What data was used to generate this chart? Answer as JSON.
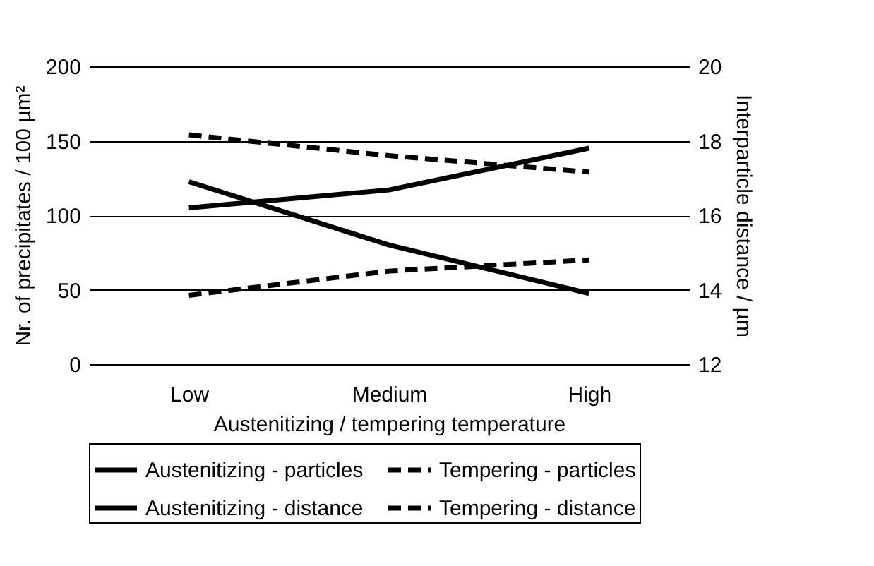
{
  "chart_data": {
    "type": "line",
    "xlabel": "Austenitizing / tempering  temperature",
    "ylabel": "Nr. of precipitates / 100 µm²",
    "y2label": "Interparticle distance / µm",
    "categories": [
      "Low",
      "Medium",
      "High"
    ],
    "series": [
      {
        "name": "Austenitizing - particles",
        "color": "#000000",
        "line_style": "solid",
        "values": [
          105,
          117,
          145
        ]
      },
      {
        "name": "Tempering - particles",
        "color": "#000000",
        "line_style": "dashed",
        "values": [
          154,
          140,
          129
        ]
      },
      {
        "name": "Austenitizing - distance",
        "color": "#000000",
        "line_style": "solid",
        "axis": "y2",
        "values": [
          16.9,
          15.2,
          13.9
        ]
      },
      {
        "name": "Tempering - distance",
        "color": "#000000",
        "line_style": "dashed",
        "axis": "y2",
        "values": [
          13.85,
          14.5,
          14.8
        ]
      }
    ],
    "ylim": [
      0,
      200
    ],
    "yticks": [
      0,
      50,
      100,
      150,
      200
    ],
    "y2lim": [
      12,
      20
    ],
    "y2ticks": [
      12,
      14,
      16,
      18,
      20
    ],
    "grid": "y",
    "legend": "bottom",
    "marker": "none"
  }
}
